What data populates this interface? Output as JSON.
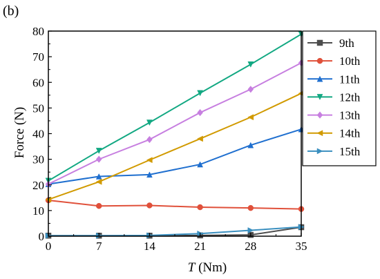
{
  "panel_label": "(b)",
  "chart_data": {
    "type": "line",
    "xlabel_italic": "T",
    "xlabel_unit": " (Nm)",
    "ylabel": "Force (N)",
    "x": [
      0,
      7,
      14,
      21,
      28,
      35
    ],
    "xticks": [
      "0",
      "7",
      "14",
      "21",
      "28",
      "35"
    ],
    "yticks": [
      "0",
      "10",
      "20",
      "30",
      "40",
      "50",
      "60",
      "70",
      "80"
    ],
    "xlim": [
      0,
      35
    ],
    "ylim": [
      0,
      80
    ],
    "grid": false,
    "legend_placement": "right",
    "series": [
      {
        "name": "9th",
        "color": "#4d4d4d",
        "marker": "square",
        "values": [
          0.2,
          0.2,
          0.2,
          0.3,
          0.5,
          3.5
        ]
      },
      {
        "name": "10th",
        "color": "#e0503a",
        "marker": "circle",
        "values": [
          14.0,
          11.8,
          12.0,
          11.3,
          11.0,
          10.6
        ]
      },
      {
        "name": "11th",
        "color": "#1f6fcf",
        "marker": "triangle-up",
        "values": [
          20.3,
          23.3,
          24.0,
          28.0,
          35.5,
          41.7
        ]
      },
      {
        "name": "12th",
        "color": "#12a882",
        "marker": "triangle-down",
        "values": [
          21.6,
          33.3,
          44.3,
          55.8,
          67.0,
          78.8
        ]
      },
      {
        "name": "13th",
        "color": "#c77fe0",
        "marker": "diamond",
        "values": [
          20.3,
          30.0,
          37.7,
          48.2,
          57.3,
          67.6
        ]
      },
      {
        "name": "14th",
        "color": "#d19a00",
        "marker": "triangle-left",
        "values": [
          14.3,
          21.2,
          29.7,
          38.0,
          46.4,
          55.7
        ]
      },
      {
        "name": "15th",
        "color": "#3a8fbf",
        "marker": "triangle-right",
        "values": [
          0.2,
          0.2,
          0.3,
          1.0,
          2.3,
          3.6
        ]
      }
    ]
  }
}
